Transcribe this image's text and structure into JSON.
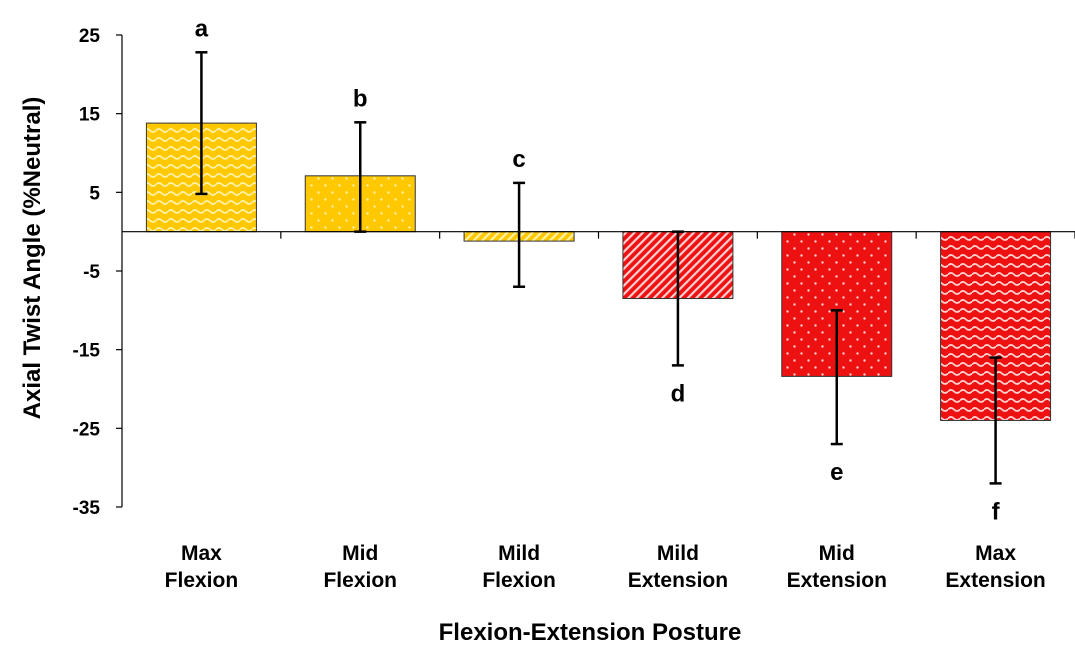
{
  "chart_data": {
    "type": "bar",
    "title": "",
    "xlabel": "Flexion-Extension Posture",
    "ylabel": "Axial Twist Angle (%Neutral)",
    "ylim": [
      -35,
      25
    ],
    "yticks": [
      25,
      15,
      5,
      -5,
      -15,
      -25,
      -35
    ],
    "grid": false,
    "legend": "none",
    "categories": [
      [
        "Max",
        "Flexion"
      ],
      [
        "Mid",
        "Flexion"
      ],
      [
        "Mild",
        "Flexion"
      ],
      [
        "Mild",
        "Extension"
      ],
      [
        "Mid",
        "Extension"
      ],
      [
        "Max",
        "Extension"
      ]
    ],
    "values": [
      13.8,
      7.1,
      -1.2,
      -8.5,
      -18.4,
      -24.0
    ],
    "error_low": [
      4.8,
      0.0,
      -7.0,
      -17.0,
      -27.0,
      -32.0
    ],
    "error_high": [
      22.8,
      13.9,
      6.2,
      0.0,
      -10.0,
      -16.0
    ],
    "significance_labels": [
      "a",
      "b",
      "c",
      "d",
      "e",
      "f"
    ],
    "colors": {
      "flexion": "#FFC800",
      "extension": "#EE1111",
      "flexion_pattern": "#FFF2A8",
      "extension_pattern": "#FFD0D0"
    },
    "patterns": [
      "wave",
      "dots",
      "stripes",
      "stripes",
      "dots",
      "wave"
    ]
  }
}
